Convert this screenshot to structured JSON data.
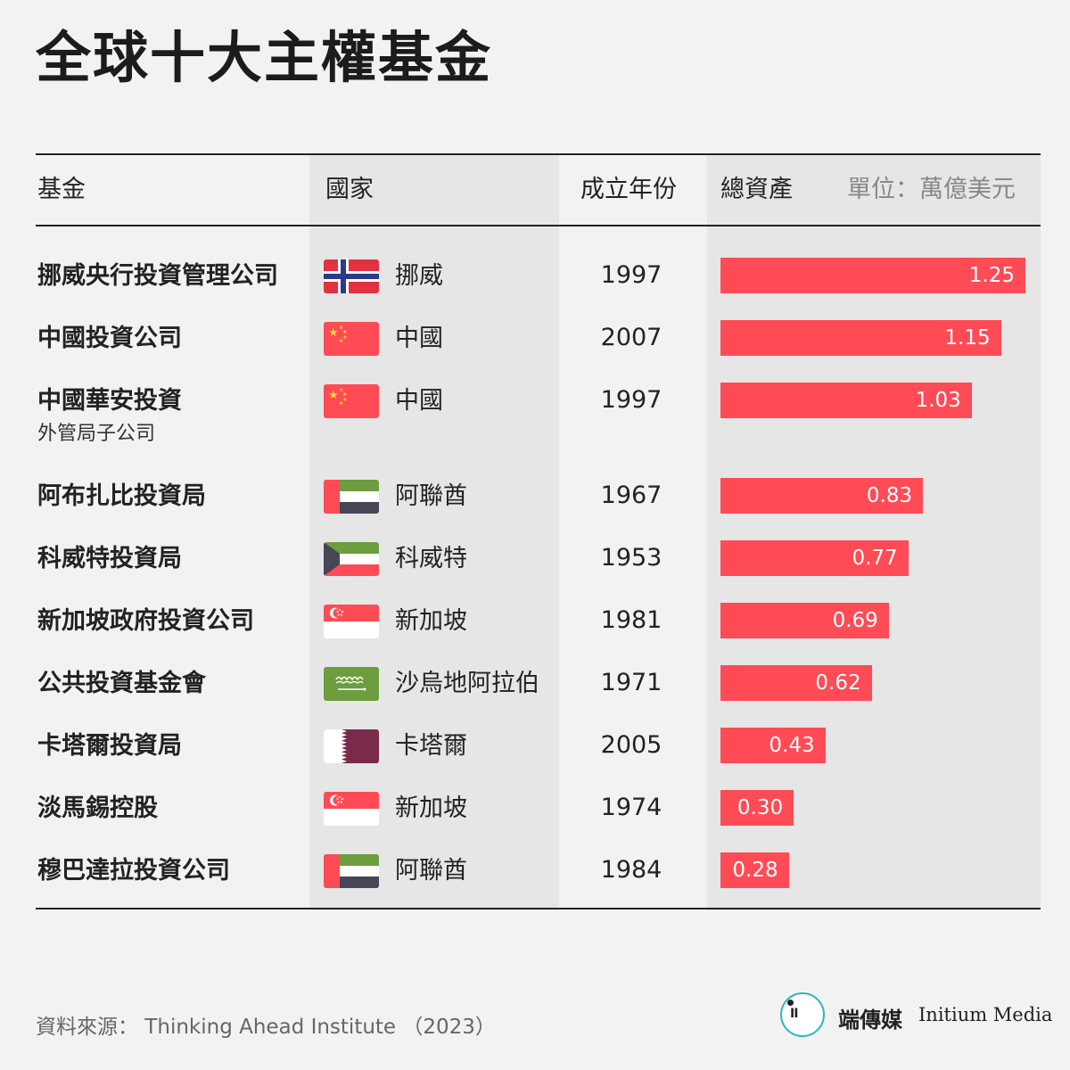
{
  "title": "全球十大主權基金",
  "headers": {
    "fund": "基金",
    "country": "國家",
    "year": "成立年份",
    "assets": "總資產",
    "unit": "單位：萬億美元"
  },
  "rows": [
    {
      "fund": "挪威央行投資管理公司",
      "sub": "",
      "country": "挪威",
      "flag": "norway",
      "year": "1997",
      "label": "1.25"
    },
    {
      "fund": "中國投資公司",
      "sub": "",
      "country": "中國",
      "flag": "china",
      "year": "2007",
      "label": "1.15"
    },
    {
      "fund": "中國華安投資",
      "sub": "外管局子公司",
      "country": "中國",
      "flag": "china",
      "year": "1997",
      "label": "1.03"
    },
    {
      "fund": "阿布扎比投資局",
      "sub": "",
      "country": "阿聯酋",
      "flag": "uae",
      "year": "1967",
      "label": "0.83"
    },
    {
      "fund": "科威特投資局",
      "sub": "",
      "country": "科威特",
      "flag": "kuwait",
      "year": "1953",
      "label": "0.77"
    },
    {
      "fund": "新加坡政府投資公司",
      "sub": "",
      "country": "新加坡",
      "flag": "singapore",
      "year": "1981",
      "label": "0.69"
    },
    {
      "fund": "公共投資基金會",
      "sub": "",
      "country": "沙烏地阿拉伯",
      "flag": "saudi",
      "year": "1971",
      "label": "0.62"
    },
    {
      "fund": "卡塔爾投資局",
      "sub": "",
      "country": "卡塔爾",
      "flag": "qatar",
      "year": "2005",
      "label": "0.43"
    },
    {
      "fund": "淡馬錫控股",
      "sub": "",
      "country": "新加坡",
      "flag": "singapore",
      "year": "1974",
      "label": "0.30"
    },
    {
      "fund": "穆巴達拉投資公司",
      "sub": "",
      "country": "阿聯酋",
      "flag": "uae",
      "year": "1984",
      "label": "0.28"
    }
  ],
  "chart_data": {
    "type": "bar",
    "orientation": "horizontal",
    "categories": [
      "挪威央行投資管理公司",
      "中國投資公司",
      "中國華安投資",
      "阿布扎比投資局",
      "科威特投資局",
      "新加坡政府投資公司",
      "公共投資基金會",
      "卡塔爾投資局",
      "淡馬錫控股",
      "穆巴達拉投資公司"
    ],
    "values": [
      1.25,
      1.15,
      1.03,
      0.83,
      0.77,
      0.69,
      0.62,
      0.43,
      0.3,
      0.28
    ],
    "title": "全球十大主權基金",
    "xlabel": "總資產",
    "unit": "單位：萬億美元",
    "bar_color": "#ff4b55",
    "grid": false
  },
  "colors": {
    "bar": "#ff4b55",
    "background": "#f2f2f2",
    "shade": "#e6e6e6"
  },
  "footer": {
    "source": "資料來源： Thinking Ahead Institute （2023）",
    "brand_cn": "端傳媒",
    "brand_en": "Initium Media",
    "logo_mark": "ΙΙ"
  }
}
